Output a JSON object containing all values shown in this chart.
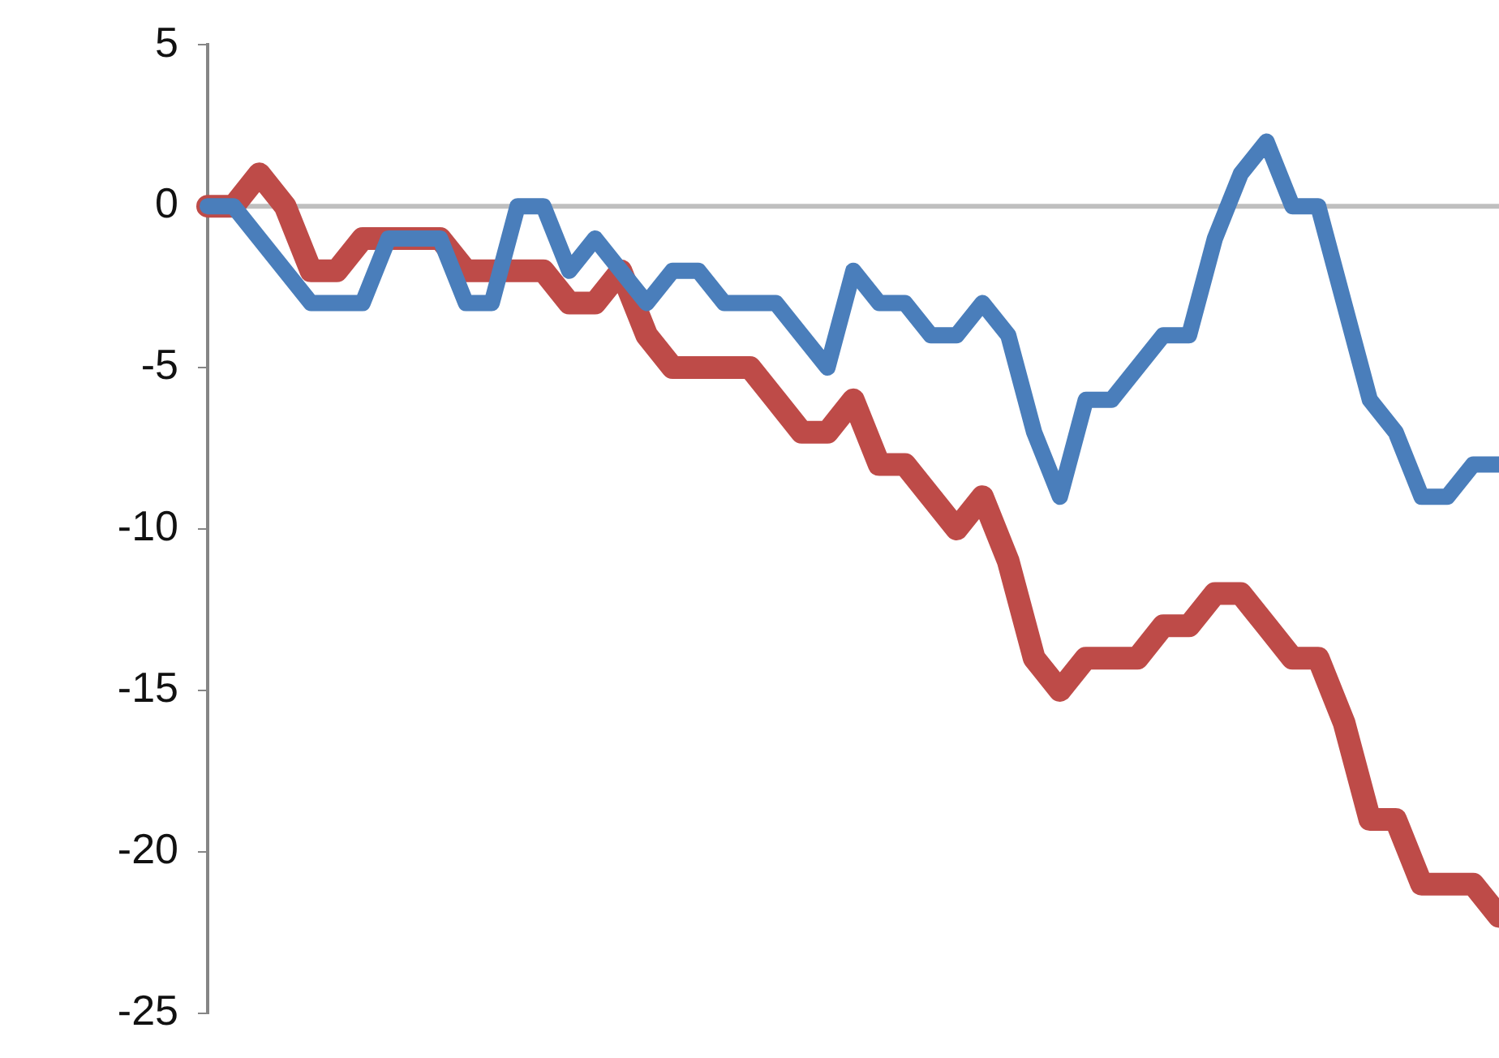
{
  "chart_data": {
    "type": "line",
    "categories": [
      null,
      null,
      null,
      null,
      null,
      null,
      null,
      null,
      null,
      null,
      null,
      null,
      null,
      null,
      null,
      null,
      null,
      null,
      null,
      null,
      null,
      null,
      null,
      null,
      null,
      null,
      null,
      null,
      null,
      null,
      null,
      null,
      null,
      null,
      null,
      null,
      null,
      null,
      null,
      null,
      null,
      null,
      null,
      null,
      null,
      null,
      null,
      null,
      null,
      null,
      null
    ],
    "series": [
      {
        "color": "#4a7ebb",
        "values": [
          0,
          0,
          -1,
          -2,
          -3,
          -3,
          -3,
          -1,
          -1,
          -1,
          -3,
          -3,
          0,
          0,
          -2,
          -1,
          -2,
          -3,
          -2,
          -2,
          -3,
          -3,
          -3,
          -4,
          -5,
          -2,
          -3,
          -3,
          -4,
          -4,
          -3,
          -4,
          -7,
          -9,
          -6,
          -6,
          -5,
          -4,
          -4,
          -1,
          1,
          2,
          0,
          0,
          -3,
          -6,
          -7,
          -9,
          -9,
          -8,
          -8
        ]
      },
      {
        "color": "#be4b48",
        "values": [
          0,
          0,
          1,
          0,
          -2,
          -2,
          -1,
          -1,
          -1,
          -1,
          -2,
          -2,
          -2,
          -2,
          -3,
          -3,
          -2,
          -4,
          -5,
          -5,
          -5,
          -5,
          -6,
          -7,
          -7,
          -6,
          -8,
          -8,
          -9,
          -10,
          -9,
          -11,
          -14,
          -15,
          -14,
          -14,
          -14,
          -13,
          -13,
          -12,
          -12,
          -13,
          -14,
          -14,
          -16,
          -19,
          -19,
          -21,
          -21,
          -21,
          -22
        ]
      }
    ],
    "ylim": [
      -25,
      5
    ],
    "yticks": [
      -25,
      -20,
      -15,
      -10,
      -5,
      0,
      5
    ],
    "ref_lines": [
      {
        "axis": "y",
        "value": 0,
        "color": "#bfbfbf"
      }
    ],
    "grid": false,
    "legend": false,
    "marker": "none",
    "line_style": "solid",
    "tick_labels": "y"
  }
}
